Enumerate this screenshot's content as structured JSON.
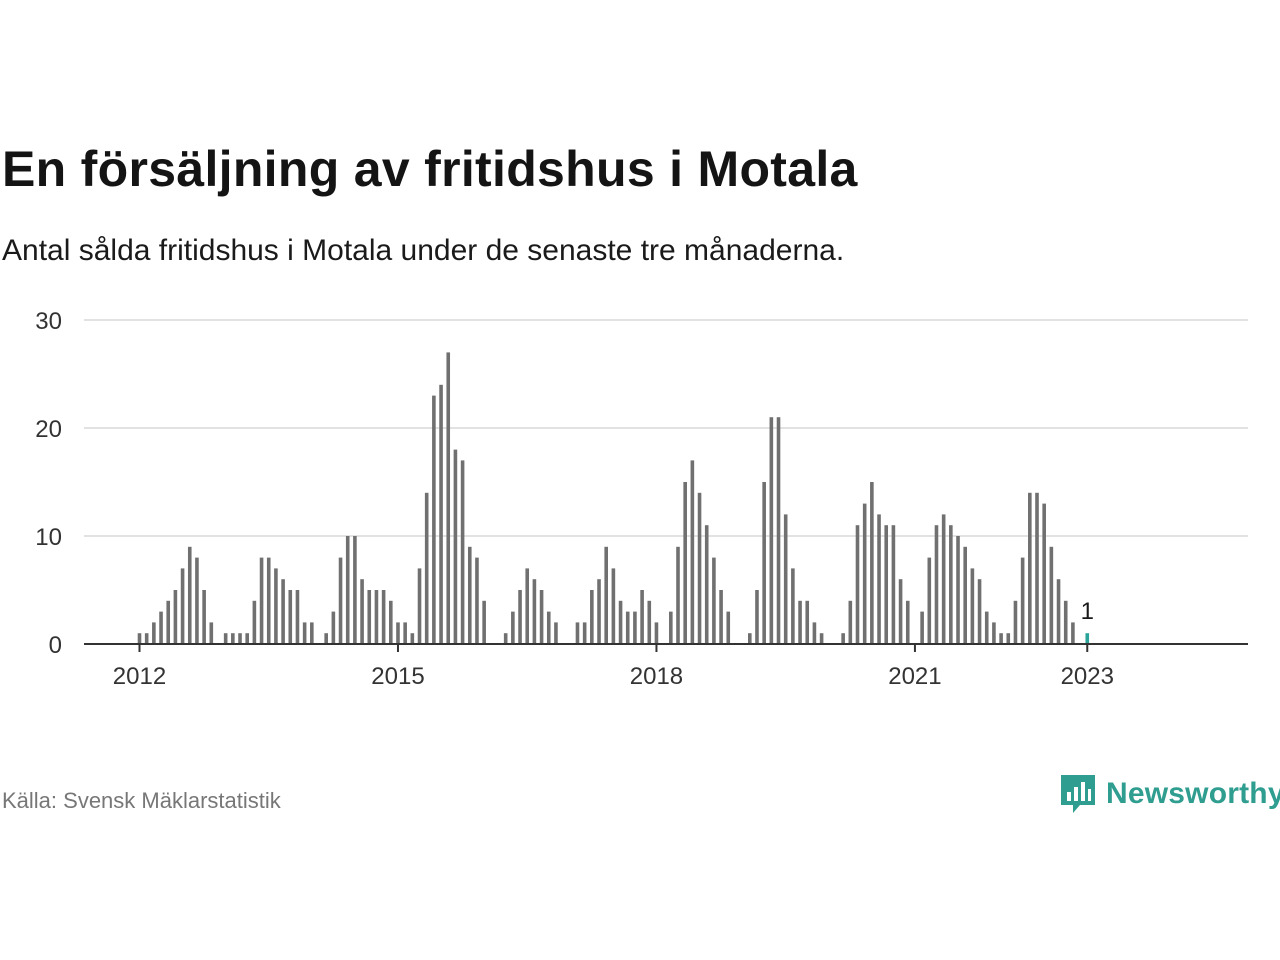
{
  "header": {
    "title": "En försäljning av fritidshus i Motala",
    "subtitle": "Antal sålda fritidshus i Motala under de senaste tre månaderna."
  },
  "footer": {
    "source": "Källa: Svensk Mäklarstatistik",
    "brand": "Newsworthy",
    "brand_icon": "bar-chart-speech-bubble-icon"
  },
  "colors": {
    "bar": "#707070",
    "highlight": "#2aa39a",
    "grid": "#d9d9d9",
    "axis": "#333333",
    "brand": "#2f9d8f"
  },
  "chart_data": {
    "type": "bar",
    "title": "",
    "xlabel": "",
    "ylabel": "",
    "ylim": [
      0,
      30
    ],
    "yticks": [
      0,
      10,
      20,
      30
    ],
    "xticks": [
      "2012",
      "2015",
      "2018",
      "2021",
      "2023"
    ],
    "grid": true,
    "categories": [
      "2012-01",
      "2012-02",
      "2012-03",
      "2012-04",
      "2012-05",
      "2012-06",
      "2012-07",
      "2012-08",
      "2012-09",
      "2012-10",
      "2012-11",
      "2012-12",
      "2013-01",
      "2013-02",
      "2013-03",
      "2013-04",
      "2013-05",
      "2013-06",
      "2013-07",
      "2013-08",
      "2013-09",
      "2013-10",
      "2013-11",
      "2013-12",
      "2014-01",
      "2014-02",
      "2014-03",
      "2014-04",
      "2014-05",
      "2014-06",
      "2014-07",
      "2014-08",
      "2014-09",
      "2014-10",
      "2014-11",
      "2014-12",
      "2015-01",
      "2015-02",
      "2015-03",
      "2015-04",
      "2015-05",
      "2015-06",
      "2015-07",
      "2015-08",
      "2015-09",
      "2015-10",
      "2015-11",
      "2015-12",
      "2016-01",
      "2016-02",
      "2016-03",
      "2016-04",
      "2016-05",
      "2016-06",
      "2016-07",
      "2016-08",
      "2016-09",
      "2016-10",
      "2016-11",
      "2016-12",
      "2017-01",
      "2017-02",
      "2017-03",
      "2017-04",
      "2017-05",
      "2017-06",
      "2017-07",
      "2017-08",
      "2017-09",
      "2017-10",
      "2017-11",
      "2017-12",
      "2018-01",
      "2018-02",
      "2018-03",
      "2018-04",
      "2018-05",
      "2018-06",
      "2018-07",
      "2018-08",
      "2018-09",
      "2018-10",
      "2018-11",
      "2018-12",
      "2019-01",
      "2019-02",
      "2019-03",
      "2019-04",
      "2019-05",
      "2019-06",
      "2019-07",
      "2019-08",
      "2019-09",
      "2019-10",
      "2019-11",
      "2019-12",
      "2020-01",
      "2020-02",
      "2020-03",
      "2020-04",
      "2020-05",
      "2020-06",
      "2020-07",
      "2020-08",
      "2020-09",
      "2020-10",
      "2020-11",
      "2020-12",
      "2021-01",
      "2021-02",
      "2021-03",
      "2021-04",
      "2021-05",
      "2021-06",
      "2021-07",
      "2021-08",
      "2021-09",
      "2021-10",
      "2021-11",
      "2021-12",
      "2022-01",
      "2022-02",
      "2022-03",
      "2022-04",
      "2022-05",
      "2022-06",
      "2022-07",
      "2022-08",
      "2022-09",
      "2022-10",
      "2022-11",
      "2022-12",
      "2023-01"
    ],
    "values": [
      1,
      1,
      2,
      3,
      4,
      5,
      7,
      9,
      8,
      5,
      2,
      0,
      1,
      1,
      1,
      1,
      4,
      8,
      8,
      7,
      6,
      5,
      5,
      2,
      2,
      0,
      1,
      3,
      8,
      10,
      10,
      6,
      5,
      5,
      5,
      4,
      2,
      2,
      1,
      7,
      14,
      23,
      24,
      27,
      18,
      17,
      9,
      8,
      4,
      0,
      0,
      1,
      3,
      5,
      7,
      6,
      5,
      3,
      2,
      0,
      0,
      2,
      2,
      5,
      6,
      9,
      7,
      4,
      3,
      3,
      5,
      4,
      2,
      0,
      3,
      9,
      15,
      17,
      14,
      11,
      8,
      5,
      3,
      0,
      0,
      1,
      5,
      15,
      21,
      21,
      12,
      7,
      4,
      4,
      2,
      1,
      0,
      0,
      1,
      4,
      11,
      13,
      15,
      12,
      11,
      11,
      6,
      4,
      0,
      3,
      8,
      11,
      12,
      11,
      10,
      9,
      7,
      6,
      3,
      2,
      1,
      1,
      4,
      8,
      14,
      14,
      13,
      9,
      6,
      4,
      2,
      0,
      1
    ],
    "highlight_label": "1"
  }
}
